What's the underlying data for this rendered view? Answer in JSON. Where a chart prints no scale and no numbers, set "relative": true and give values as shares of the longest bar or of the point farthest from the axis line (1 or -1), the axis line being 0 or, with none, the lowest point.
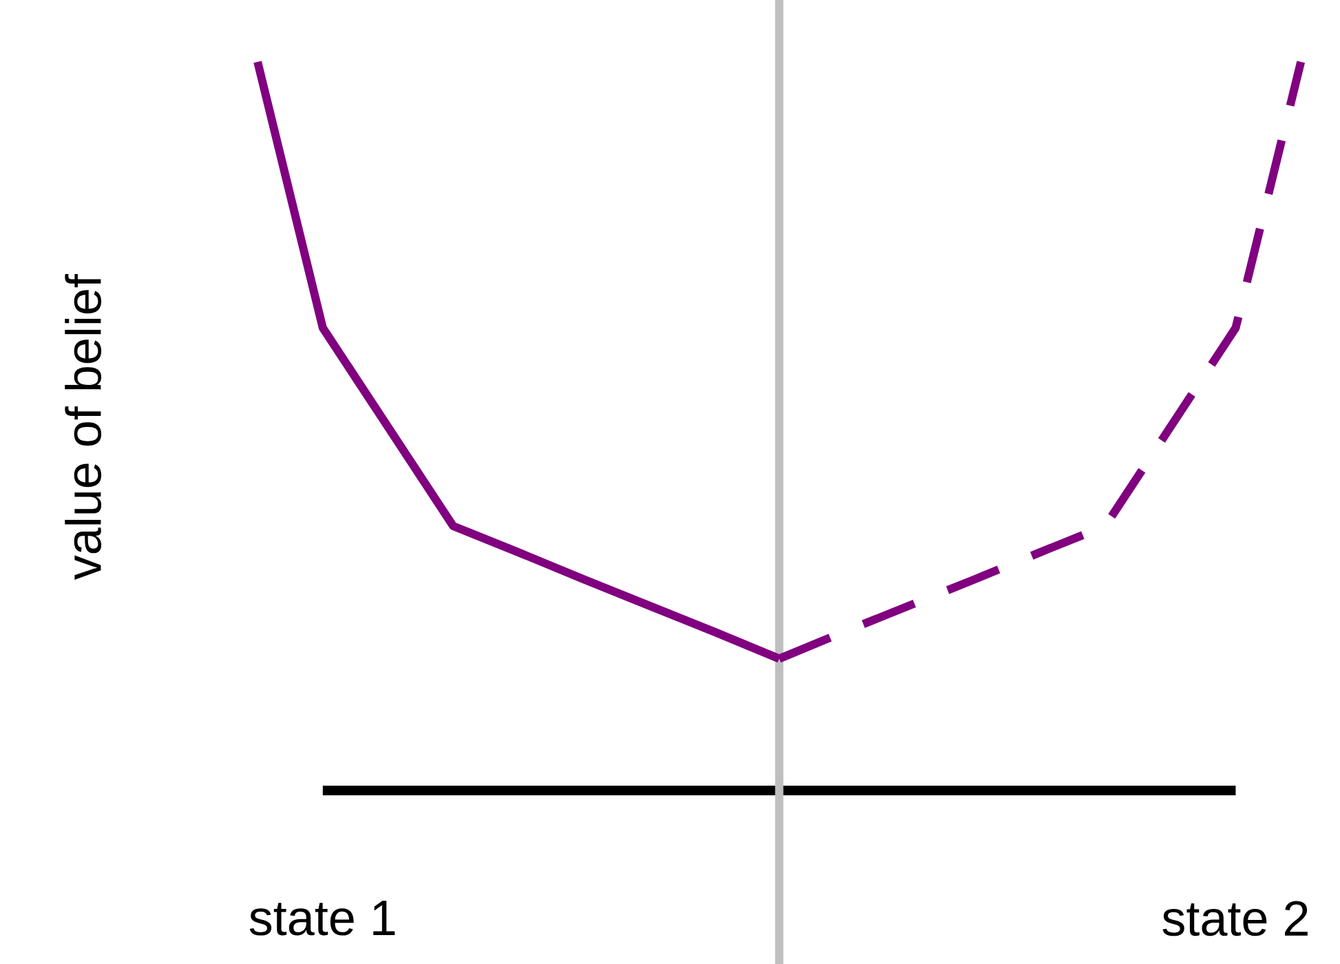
{
  "chart_data": {
    "type": "line",
    "relative": true,
    "ylabel": "value of belief",
    "marker": "none",
    "categories": [
      null,
      "state 1",
      null,
      null,
      null,
      null,
      null,
      null,
      null,
      null,
      null,
      null,
      null,
      null,
      null,
      "state 2",
      null
    ],
    "series": [
      {
        "color": "#800080",
        "line_style": "solid",
        "values": [
          1,
          0.635,
          0.499,
          0.363,
          0.327,
          0.29,
          0.254,
          0.218,
          0.181,
          null,
          null,
          null,
          null,
          null,
          null,
          null,
          null
        ]
      },
      {
        "color": "#800080",
        "line_style": "dashed",
        "values": [
          null,
          null,
          null,
          null,
          null,
          null,
          null,
          null,
          0.181,
          0.218,
          0.254,
          0.29,
          0.327,
          0.363,
          0.499,
          0.635,
          1
        ]
      }
    ]
  }
}
